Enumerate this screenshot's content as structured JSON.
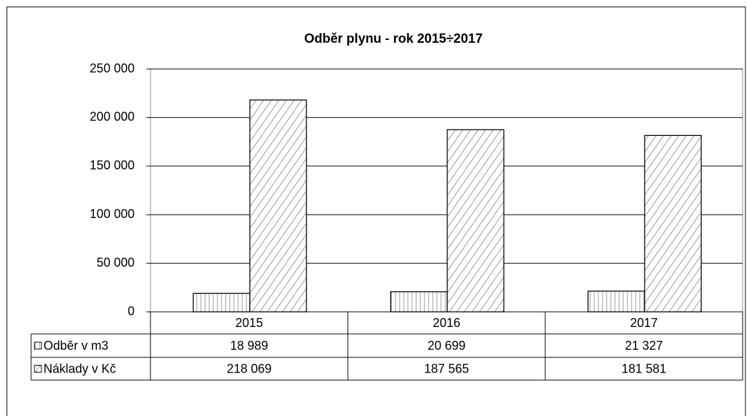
{
  "chart_data": {
    "type": "bar",
    "title": "Odběr plynu - rok 2015÷2017",
    "categories": [
      "2015",
      "2016",
      "2017"
    ],
    "series": [
      {
        "name": "Odběr v m3",
        "values": [
          18989,
          20699,
          21327
        ],
        "value_labels": [
          "18 989",
          "20 699",
          "21 327"
        ]
      },
      {
        "name": "Náklady v Kč",
        "values": [
          218069,
          187565,
          181581
        ],
        "value_labels": [
          "218 069",
          "187 565",
          "181 581"
        ]
      }
    ],
    "ylim": [
      0,
      250000
    ],
    "yticks": [
      0,
      {
        "value": 50000,
        "label": "50 000"
      },
      {
        "value": 100000,
        "label": "100 000"
      },
      {
        "value": 150000,
        "label": "150 000"
      },
      {
        "value": 200000,
        "label": "200 000"
      },
      {
        "value": 250000,
        "label": "250 000"
      }
    ],
    "grid": true
  }
}
